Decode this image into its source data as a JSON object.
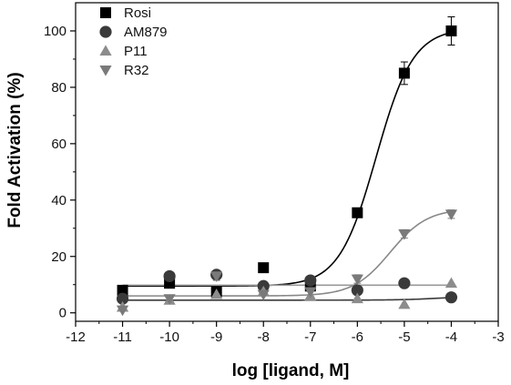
{
  "chart_data": {
    "type": "scatter",
    "xlabel": "log [ligand, M]",
    "ylabel": "Fold Activation (%)",
    "xlim": [
      -12,
      -3
    ],
    "ylim": [
      -3,
      110
    ],
    "x_ticks": [
      -12,
      -11,
      -10,
      -9,
      -8,
      -7,
      -6,
      -5,
      -4,
      -3
    ],
    "y_ticks": [
      0,
      20,
      40,
      60,
      80,
      100
    ],
    "grid": false,
    "legend_position": "top-left",
    "series": [
      {
        "name": "Rosi",
        "marker": "square",
        "color": "#000000",
        "x": [
          -11,
          -10,
          -9,
          -8,
          -7,
          -6,
          -5,
          -4
        ],
        "y": [
          8,
          10.5,
          7.5,
          16,
          9.5,
          35.5,
          85,
          100
        ],
        "err": [
          1,
          1,
          1,
          1,
          1.5,
          1.5,
          4,
          5
        ],
        "fit": {
          "bottom": 9.5,
          "top": 101,
          "logEC50": -5.6,
          "hill": 1.1,
          "color": "#000000"
        }
      },
      {
        "name": "AM879",
        "marker": "circle",
        "color": "#3a3a3a",
        "x": [
          -11,
          -10,
          -9,
          -8,
          -7,
          -6,
          -5,
          -4
        ],
        "y": [
          5,
          13,
          13.5,
          9.5,
          11.5,
          8,
          10.5,
          5.5
        ],
        "err": [
          0,
          0,
          0,
          0,
          0,
          0,
          0,
          0
        ],
        "fit": {
          "bottom": 4.5,
          "top": 6,
          "logEC50": -4.2,
          "hill": 1,
          "color": "#3a3a3a"
        }
      },
      {
        "name": "P11",
        "marker": "triangle-up",
        "color": "#8c8c8c",
        "x": [
          -11,
          -10,
          -9,
          -8,
          -7,
          -6,
          -5,
          -4
        ],
        "y": [
          2,
          4.5,
          6.5,
          7.5,
          6,
          5,
          3,
          10.5
        ],
        "err": [
          0,
          0,
          0,
          0,
          0,
          0,
          0,
          0
        ],
        "fit": {
          "bottom": 9.8,
          "top": 9.8,
          "logEC50": -6,
          "hill": 1,
          "color": "#999999"
        }
      },
      {
        "name": "R32",
        "marker": "triangle-down",
        "color": "#7a7a7a",
        "x": [
          -11,
          -10,
          -9,
          -8,
          -7,
          -6,
          -5,
          -4
        ],
        "y": [
          1,
          5,
          13,
          6.5,
          7.5,
          12,
          28,
          35
        ],
        "err": [
          0,
          0,
          1.5,
          0,
          0,
          1.5,
          1.5,
          1.5
        ],
        "fit": {
          "bottom": 6,
          "top": 37,
          "logEC50": -5.3,
          "hill": 1.1,
          "color": "#888888"
        }
      }
    ]
  }
}
